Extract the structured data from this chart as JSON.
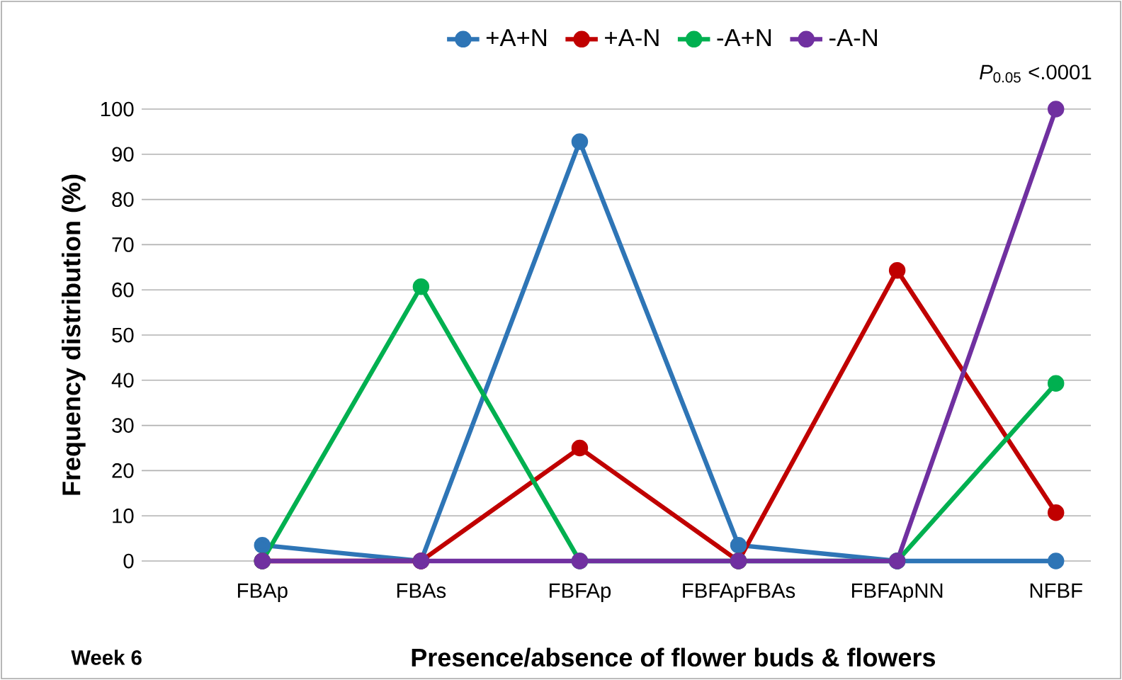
{
  "chart_data": {
    "type": "line",
    "xlabel": "Presence/absence of flower buds & flowers",
    "ylabel": "Frequency distribution (%)",
    "categories": [
      "FBAp",
      "FBAs",
      "FBFAp",
      "FBFApFBAs",
      "FBFApNN",
      "NFBF"
    ],
    "series": [
      {
        "name": "+A+N",
        "color": "#2e75b6",
        "values": [
          3.5,
          0,
          92.8,
          3.5,
          0,
          0
        ]
      },
      {
        "name": "+A-N",
        "color": "#c00000",
        "values": [
          0,
          0,
          25,
          0,
          64.3,
          10.7
        ]
      },
      {
        "name": "-A+N",
        "color": "#00b050",
        "values": [
          0,
          60.7,
          0,
          0,
          0,
          39.3
        ]
      },
      {
        "name": "-A-N",
        "color": "#7030a0",
        "values": [
          0,
          0,
          0,
          0,
          0,
          100
        ]
      }
    ],
    "ylim": [
      0,
      100
    ],
    "yticks": [
      0,
      10,
      20,
      30,
      40,
      50,
      60,
      70,
      80,
      90,
      100
    ],
    "grid": "y",
    "legend": "top",
    "marker": "circle",
    "line_style": "solid",
    "annotations": [
      "*P*$_{0.05}$ <.0001",
      "Week 6"
    ]
  }
}
